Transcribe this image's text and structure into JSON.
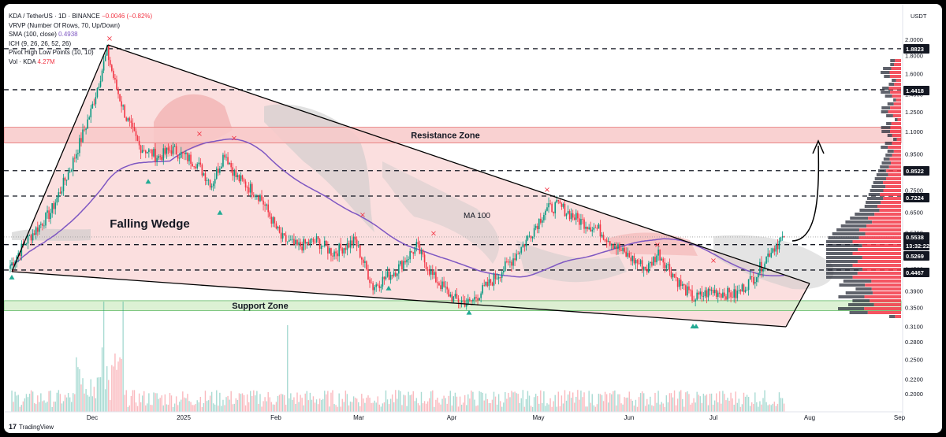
{
  "legend": {
    "symbol": "KDA / TetherUS · 1D · BINANCE",
    "change": "−0.0046 (−0.82%)",
    "vrvp": "VRVP (Number Of Rows, 70, Up/Down)",
    "sma_label": "SMA (100, close)",
    "sma_value": "0.4938",
    "ichimoku": "ICH (9, 26, 26, 52, 26)",
    "pivots": "Pivot High Low Points (10, 10)",
    "vol_label": "Vol · KDA",
    "vol_value": "4.27M"
  },
  "footer": {
    "brand": "TradingView"
  },
  "colors": {
    "up": "#089981",
    "down": "#f23645",
    "wedge_fill": "#f9d4d4",
    "sma": "#7e57c2",
    "resistance": "#f8c9c9",
    "support": "#d8f0cf",
    "cloud": "#c9c9c9",
    "cloud_red": "#f3b8b8"
  },
  "chart_data": {
    "type": "candlestick",
    "title": "",
    "axis": {
      "y_scale": "log",
      "currency": "USDT"
    },
    "y_ticks": [
      "2.0000",
      "1.8000",
      "1.6000",
      "1.4000",
      "1.2500",
      "1.1000",
      "0.9500",
      "0.8500",
      "0.7500",
      "0.6500",
      "0.5700",
      "0.4500",
      "0.3900",
      "0.3500",
      "0.3100",
      "0.2800",
      "0.2500",
      "0.2200",
      "0.2000"
    ],
    "x_ticks": [
      "Dec",
      "2025",
      "Feb",
      "Mar",
      "Apr",
      "May",
      "Jun",
      "Jul",
      "Aug",
      "Sep"
    ],
    "price_labels": [
      {
        "value": "1.8823",
        "style": "dark"
      },
      {
        "value": "1.4418",
        "style": "dark"
      },
      {
        "value": "0.8522",
        "style": "dark"
      },
      {
        "value": "0.7224",
        "style": "dark"
      },
      {
        "value": "0.5538",
        "style": "dark"
      },
      {
        "value": "13:32:22",
        "style": "dark"
      },
      {
        "value": "0.5269",
        "style": "dark"
      },
      {
        "value": "0.4467",
        "style": "dark"
      }
    ],
    "horizontal_levels": [
      1.8823,
      1.4418,
      0.8522,
      0.7224,
      0.5269,
      0.4467
    ],
    "resistance_zone": {
      "label": "Resistance Zone",
      "low": 1.02,
      "high": 1.13
    },
    "support_zone": {
      "label": "Support Zone",
      "low": 0.343,
      "high": 0.366
    },
    "annotations": [
      {
        "text": "Falling Wedge"
      },
      {
        "text": "MA 100"
      }
    ],
    "close_keypoints": [
      {
        "d": 0,
        "p": 0.46
      },
      {
        "d": 10,
        "p": 0.54
      },
      {
        "d": 25,
        "p": 0.65
      },
      {
        "d": 38,
        "p": 0.88
      },
      {
        "d": 50,
        "p": 1.25
      },
      {
        "d": 60,
        "p": 1.85
      },
      {
        "d": 65,
        "p": 1.5
      },
      {
        "d": 72,
        "p": 1.2
      },
      {
        "d": 80,
        "p": 1.0
      },
      {
        "d": 92,
        "p": 0.93
      },
      {
        "d": 100,
        "p": 0.98
      },
      {
        "d": 115,
        "p": 0.9
      },
      {
        "d": 125,
        "p": 0.78
      },
      {
        "d": 133,
        "p": 0.96
      },
      {
        "d": 140,
        "p": 0.82
      },
      {
        "d": 155,
        "p": 0.72
      },
      {
        "d": 168,
        "p": 0.55
      },
      {
        "d": 178,
        "p": 0.52
      },
      {
        "d": 190,
        "p": 0.54
      },
      {
        "d": 200,
        "p": 0.5
      },
      {
        "d": 214,
        "p": 0.54
      },
      {
        "d": 225,
        "p": 0.4
      },
      {
        "d": 240,
        "p": 0.45
      },
      {
        "d": 252,
        "p": 0.52
      },
      {
        "d": 262,
        "p": 0.43
      },
      {
        "d": 275,
        "p": 0.37
      },
      {
        "d": 285,
        "p": 0.36
      },
      {
        "d": 295,
        "p": 0.4
      },
      {
        "d": 310,
        "p": 0.47
      },
      {
        "d": 320,
        "p": 0.54
      },
      {
        "d": 332,
        "p": 0.66
      },
      {
        "d": 340,
        "p": 0.68
      },
      {
        "d": 352,
        "p": 0.62
      },
      {
        "d": 365,
        "p": 0.58
      },
      {
        "d": 380,
        "p": 0.5
      },
      {
        "d": 395,
        "p": 0.45
      },
      {
        "d": 402,
        "p": 0.5
      },
      {
        "d": 415,
        "p": 0.41
      },
      {
        "d": 424,
        "p": 0.37
      },
      {
        "d": 435,
        "p": 0.39
      },
      {
        "d": 450,
        "p": 0.38
      },
      {
        "d": 462,
        "p": 0.43
      },
      {
        "d": 472,
        "p": 0.51
      },
      {
        "d": 480,
        "p": 0.5538
      }
    ],
    "pivot_highs": [
      1.95,
      1.05,
      1.02,
      0.62,
      0.55,
      0.73,
      0.51,
      0.46
    ],
    "pivot_lows": [
      0.44,
      0.82,
      0.67,
      0.41,
      0.35,
      0.32,
      0.32
    ]
  }
}
